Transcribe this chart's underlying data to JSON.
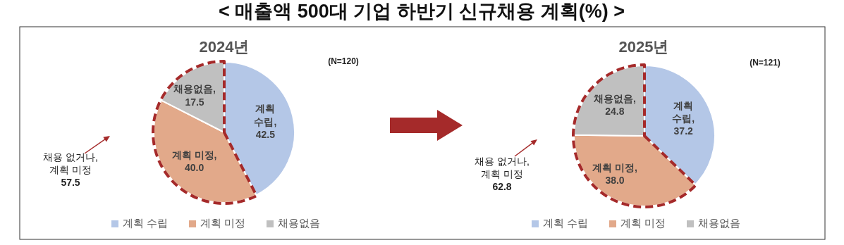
{
  "chart_data": [
    {
      "type": "other",
      "title": "< 매출액 500대 기업 하반기 신규채용 계획(%) >"
    },
    {
      "type": "pie",
      "title": "2024년",
      "categories": [
        "계획 수립",
        "계획 미정",
        "채용없음"
      ],
      "values": [
        42.5,
        40.0,
        17.5
      ],
      "value_labels": [
        "계획\n수립,\n42.5",
        "계획 미정,\n40.0",
        "채용없음,\n17.5"
      ],
      "colors": [
        "#b4c7e7",
        "#e2a98a",
        "#c0c0c0"
      ],
      "legend": "bottom",
      "annotations": [
        "(N=120)",
        "채용 없거나,\n계획 미정\n57.5"
      ]
    },
    {
      "type": "pie",
      "title": "2025년",
      "categories": [
        "계획 수립",
        "계획 미정",
        "채용없음"
      ],
      "values": [
        37.2,
        38.0,
        24.8
      ],
      "value_labels": [
        "계획\n수립,\n37.2",
        "계획 미정,\n38.0",
        "채용없음,\n24.8"
      ],
      "colors": [
        "#b4c7e7",
        "#e2a98a",
        "#c0c0c0"
      ],
      "legend": "bottom",
      "annotations": [
        "(N=121)",
        "채용 없거나,\n계획 미정\n62.8"
      ]
    }
  ]
}
